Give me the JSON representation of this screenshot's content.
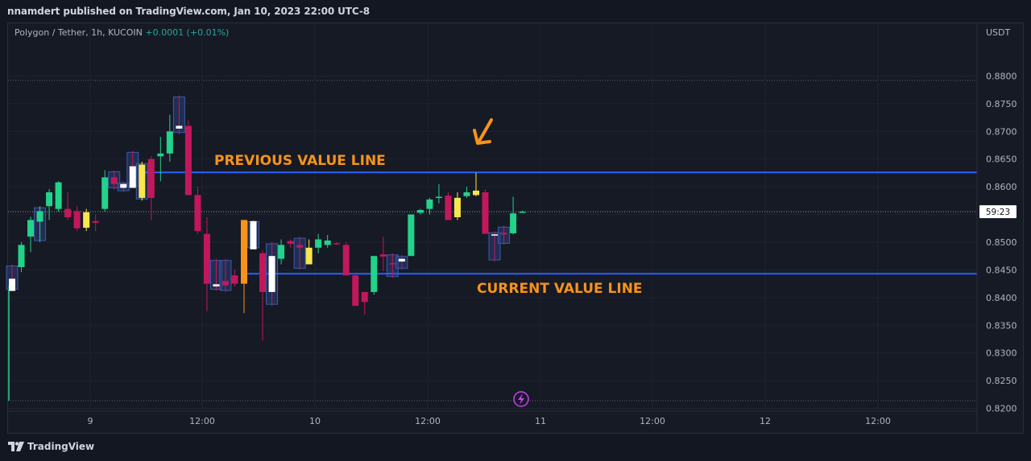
{
  "header": {
    "publish_text": "nnamdert published on TradingView.com, Jan 10, 2023 22:00 UTC-8"
  },
  "legend": {
    "symbol": "Polygon / Tether, 1h, KUCOIN",
    "change": "+0.0001 (+0.01%)"
  },
  "price_axis": {
    "currency": "USDT",
    "countdown": "59:23"
  },
  "footer": {
    "logo_text": "TradingView"
  },
  "colors": {
    "background": "#131722",
    "up": "#22d38a",
    "down": "#c2185b",
    "yellow": "#f7e64e",
    "white": "#ffffff",
    "orange": "#f7931a",
    "level_line": "#2962ff",
    "annotation": "#f7931a",
    "box_fill": "#2a3f7a"
  },
  "chart_data": {
    "type": "candlestick",
    "ylim": [
      0.8195,
      0.8895
    ],
    "y_ticks": [
      "0.8800",
      "0.8750",
      "0.8700",
      "0.8650",
      "0.8600",
      "0.8550",
      "0.8500",
      "0.8450",
      "0.8400",
      "0.8350",
      "0.8300",
      "0.8250",
      "0.8200"
    ],
    "x_ticks": [
      "9",
      "12:00",
      "10",
      "12:00",
      "11",
      "12:00",
      "12",
      "12:00"
    ],
    "annotations": [
      {
        "text": "PREVIOUS VALUE LINE",
        "price": 0.8626
      },
      {
        "text": "CURRENT VALUE LINE",
        "price": 0.8443
      }
    ],
    "current_price": 0.8555,
    "candles": [
      {
        "o": 0.8434,
        "h": 0.846,
        "l": 0.8412,
        "c": 0.8412,
        "color": "white",
        "box": true
      },
      {
        "o": 0.8455,
        "h": 0.85,
        "l": 0.8446,
        "c": 0.8495,
        "color": "up"
      },
      {
        "o": 0.851,
        "h": 0.8546,
        "l": 0.8482,
        "c": 0.854,
        "color": "up"
      },
      {
        "o": 0.8537,
        "h": 0.8565,
        "l": 0.85,
        "c": 0.8556,
        "color": "up",
        "box": true
      },
      {
        "o": 0.8565,
        "h": 0.8596,
        "l": 0.854,
        "c": 0.859,
        "color": "up"
      },
      {
        "o": 0.856,
        "h": 0.861,
        "l": 0.8555,
        "c": 0.8608,
        "color": "up"
      },
      {
        "o": 0.856,
        "h": 0.859,
        "l": 0.854,
        "c": 0.8545,
        "color": "down"
      },
      {
        "o": 0.8556,
        "h": 0.8565,
        "l": 0.852,
        "c": 0.8525,
        "color": "down"
      },
      {
        "o": 0.8526,
        "h": 0.856,
        "l": 0.852,
        "c": 0.8554,
        "color": "yellow"
      },
      {
        "o": 0.8535,
        "h": 0.855,
        "l": 0.852,
        "c": 0.8538,
        "color": "down"
      },
      {
        "o": 0.856,
        "h": 0.863,
        "l": 0.8555,
        "c": 0.8617,
        "color": "up"
      },
      {
        "o": 0.8617,
        "h": 0.863,
        "l": 0.8595,
        "c": 0.8605,
        "color": "down",
        "box": true
      },
      {
        "o": 0.8598,
        "h": 0.861,
        "l": 0.859,
        "c": 0.8605,
        "color": "white",
        "box": true
      },
      {
        "o": 0.8637,
        "h": 0.8665,
        "l": 0.8598,
        "c": 0.8598,
        "color": "white",
        "box": true
      },
      {
        "o": 0.864,
        "h": 0.8645,
        "l": 0.8575,
        "c": 0.858,
        "color": "yellow",
        "box": true
      },
      {
        "o": 0.865,
        "h": 0.8655,
        "l": 0.854,
        "c": 0.858,
        "color": "down"
      },
      {
        "o": 0.866,
        "h": 0.869,
        "l": 0.861,
        "c": 0.8655,
        "color": "up"
      },
      {
        "o": 0.866,
        "h": 0.873,
        "l": 0.8645,
        "c": 0.87,
        "color": "up"
      },
      {
        "o": 0.871,
        "h": 0.8765,
        "l": 0.8695,
        "c": 0.8705,
        "color": "white",
        "box": true
      },
      {
        "o": 0.871,
        "h": 0.872,
        "l": 0.8585,
        "c": 0.8585,
        "color": "down"
      },
      {
        "o": 0.8585,
        "h": 0.86,
        "l": 0.8515,
        "c": 0.852,
        "color": "down"
      },
      {
        "o": 0.8515,
        "h": 0.8545,
        "l": 0.8375,
        "c": 0.8425,
        "color": "down"
      },
      {
        "o": 0.8424,
        "h": 0.847,
        "l": 0.8412,
        "c": 0.842,
        "color": "white",
        "box": true
      },
      {
        "o": 0.8422,
        "h": 0.847,
        "l": 0.841,
        "c": 0.843,
        "color": "down",
        "box": true
      },
      {
        "o": 0.844,
        "h": 0.845,
        "l": 0.842,
        "c": 0.8425,
        "color": "down"
      },
      {
        "o": 0.854,
        "h": 0.854,
        "l": 0.8372,
        "c": 0.8425,
        "color": "orange"
      },
      {
        "o": 0.8538,
        "h": 0.854,
        "l": 0.8487,
        "c": 0.8487,
        "color": "white",
        "box": true
      },
      {
        "o": 0.848,
        "h": 0.8485,
        "l": 0.8322,
        "c": 0.841,
        "color": "down"
      },
      {
        "o": 0.841,
        "h": 0.85,
        "l": 0.8385,
        "c": 0.8475,
        "color": "white",
        "box": true
      },
      {
        "o": 0.847,
        "h": 0.8505,
        "l": 0.846,
        "c": 0.8495,
        "color": "up"
      },
      {
        "o": 0.8497,
        "h": 0.8505,
        "l": 0.849,
        "c": 0.8502,
        "color": "down"
      },
      {
        "o": 0.8495,
        "h": 0.851,
        "l": 0.845,
        "c": 0.849,
        "color": "down",
        "box": true
      },
      {
        "o": 0.849,
        "h": 0.8505,
        "l": 0.846,
        "c": 0.846,
        "color": "yellow"
      },
      {
        "o": 0.849,
        "h": 0.8515,
        "l": 0.848,
        "c": 0.8505,
        "color": "up"
      },
      {
        "o": 0.8503,
        "h": 0.8513,
        "l": 0.849,
        "c": 0.8495,
        "color": "up"
      },
      {
        "o": 0.8498,
        "h": 0.85,
        "l": 0.8495,
        "c": 0.8498,
        "color": "down"
      },
      {
        "o": 0.8495,
        "h": 0.85,
        "l": 0.844,
        "c": 0.844,
        "color": "down"
      },
      {
        "o": 0.844,
        "h": 0.8445,
        "l": 0.8385,
        "c": 0.8385,
        "color": "down"
      },
      {
        "o": 0.841,
        "h": 0.8405,
        "l": 0.837,
        "c": 0.8392,
        "color": "down"
      },
      {
        "o": 0.841,
        "h": 0.8475,
        "l": 0.8405,
        "c": 0.8475,
        "color": "up"
      },
      {
        "o": 0.8478,
        "h": 0.851,
        "l": 0.8448,
        "c": 0.8474,
        "color": "down"
      },
      {
        "o": 0.8462,
        "h": 0.848,
        "l": 0.8435,
        "c": 0.8462,
        "color": "down",
        "box": true
      },
      {
        "o": 0.8465,
        "h": 0.8477,
        "l": 0.845,
        "c": 0.847,
        "color": "white",
        "box": true
      },
      {
        "o": 0.8475,
        "h": 0.855,
        "l": 0.8475,
        "c": 0.855,
        "color": "up"
      },
      {
        "o": 0.8553,
        "h": 0.856,
        "l": 0.855,
        "c": 0.8558,
        "color": "up"
      },
      {
        "o": 0.856,
        "h": 0.858,
        "l": 0.855,
        "c": 0.8577,
        "color": "up"
      },
      {
        "o": 0.858,
        "h": 0.8605,
        "l": 0.857,
        "c": 0.8582,
        "color": "up"
      },
      {
        "o": 0.8584,
        "h": 0.859,
        "l": 0.854,
        "c": 0.854,
        "color": "down"
      },
      {
        "o": 0.8545,
        "h": 0.859,
        "l": 0.854,
        "c": 0.858,
        "color": "yellow"
      },
      {
        "o": 0.8583,
        "h": 0.86,
        "l": 0.858,
        "c": 0.859,
        "color": "up"
      },
      {
        "o": 0.8593,
        "h": 0.8625,
        "l": 0.8583,
        "c": 0.8585,
        "color": "yellow"
      },
      {
        "o": 0.859,
        "h": 0.8595,
        "l": 0.8515,
        "c": 0.8515,
        "color": "down"
      },
      {
        "o": 0.8512,
        "h": 0.852,
        "l": 0.8465,
        "c": 0.8514,
        "color": "white",
        "box": true
      },
      {
        "o": 0.8517,
        "h": 0.853,
        "l": 0.8495,
        "c": 0.8514,
        "color": "down",
        "box": true
      },
      {
        "o": 0.8516,
        "h": 0.8582,
        "l": 0.8514,
        "c": 0.8552,
        "color": "up"
      },
      {
        "o": 0.8554,
        "h": 0.8557,
        "l": 0.8553,
        "c": 0.8555,
        "color": "up"
      }
    ]
  }
}
